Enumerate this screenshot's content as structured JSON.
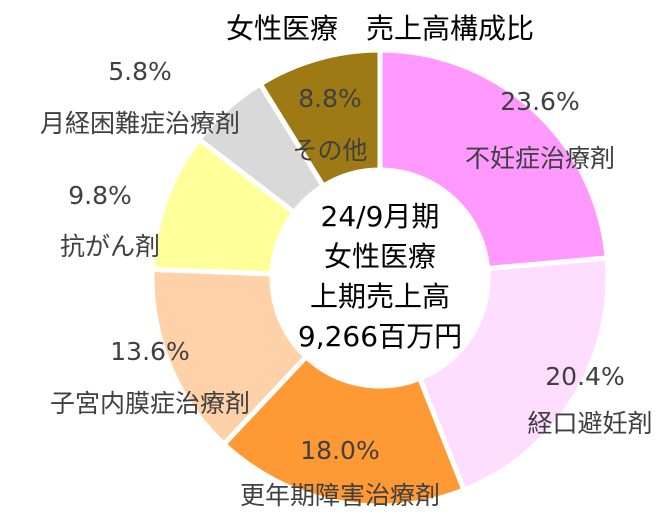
{
  "chart_data": {
    "type": "donut",
    "title": "女性医療　売上高構成比",
    "categories": [
      "不妊症治療剤",
      "経口避妊剤",
      "更年期障害治療剤",
      "子宮内膜症治療剤",
      "抗がん剤",
      "月経困難症治療剤",
      "その他"
    ],
    "values": [
      23.6,
      20.4,
      18.0,
      13.6,
      9.8,
      5.8,
      8.8
    ],
    "value_labels": [
      "23.6%",
      "20.4%",
      "18.0%",
      "13.6%",
      "9.8%",
      "5.8%",
      "8.8%"
    ],
    "colors": [
      "#ff99ff",
      "#ffddff",
      "#ff9933",
      "#ffd1a9",
      "#ffff99",
      "#d9d9d9",
      "#9e7a14"
    ],
    "center_text": [
      "24/9月期",
      "女性医療",
      "上期売上高",
      "9,266百万円"
    ]
  }
}
